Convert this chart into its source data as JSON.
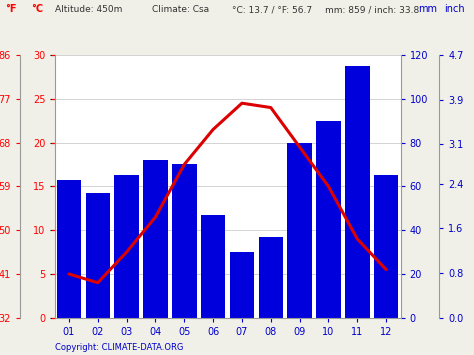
{
  "months": [
    "01",
    "02",
    "03",
    "04",
    "05",
    "06",
    "07",
    "08",
    "09",
    "10",
    "11",
    "12"
  ],
  "precipitation_mm": [
    63,
    57,
    65,
    72,
    70,
    47,
    30,
    37,
    80,
    90,
    115,
    65
  ],
  "avg_temp_c": [
    5.0,
    4.0,
    7.5,
    11.5,
    17.5,
    21.5,
    24.5,
    24.0,
    19.5,
    15.0,
    9.0,
    5.5
  ],
  "bar_color": "#0000dd",
  "line_color": "#dd0000",
  "background_color": "#f0f0e8",
  "plot_bg_color": "#ffffff",
  "left_axis_c": [
    0,
    5,
    10,
    15,
    20,
    25,
    30
  ],
  "left_axis_f": [
    32,
    41,
    50,
    59,
    68,
    77,
    86
  ],
  "right_axis_mm": [
    0,
    20,
    40,
    60,
    80,
    100,
    120
  ],
  "right_axis_inch": [
    0.0,
    0.8,
    1.6,
    2.4,
    3.1,
    3.9,
    4.7
  ],
  "ylim_mm": [
    0,
    120
  ],
  "ylim_c": [
    0,
    30
  ],
  "ylim_f": [
    32,
    86
  ],
  "copyright_text": "Copyright: CLIMATE-DATA.ORG"
}
